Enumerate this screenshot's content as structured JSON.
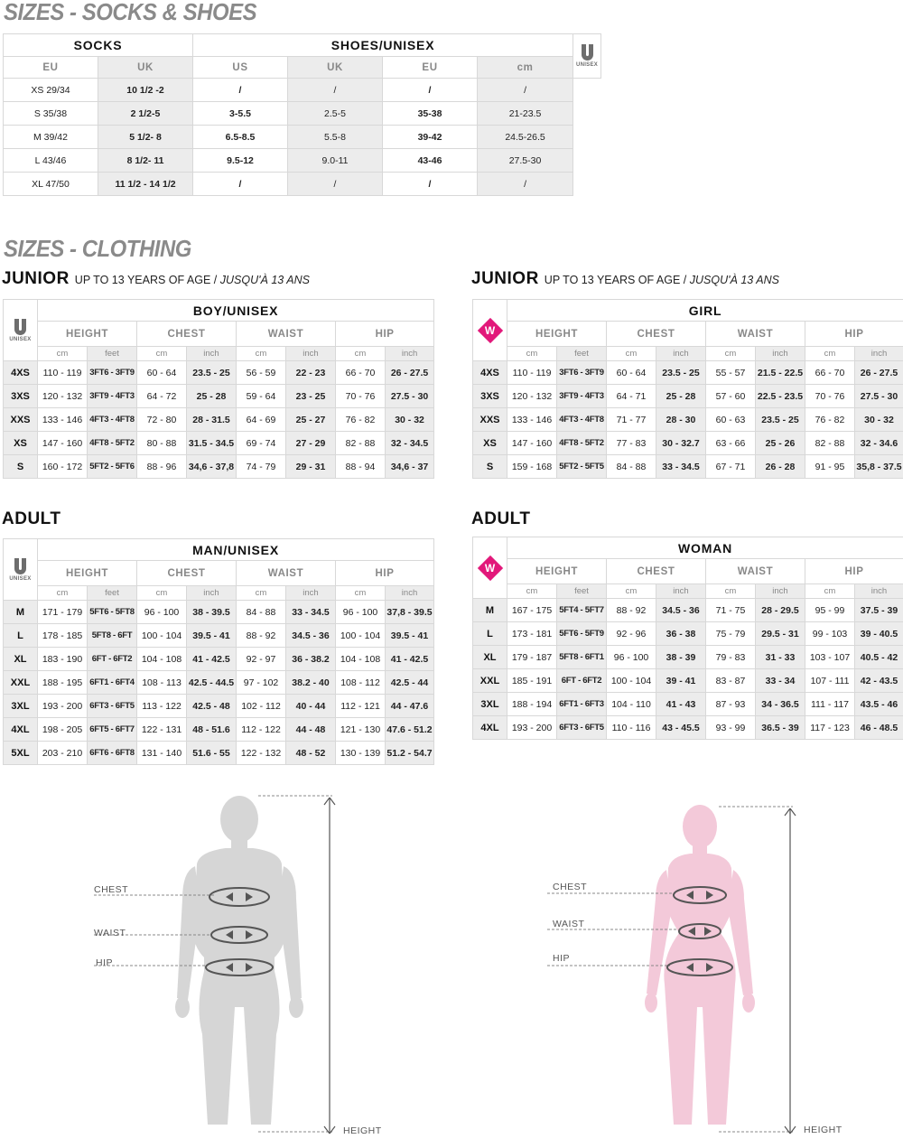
{
  "titles": {
    "socks_shoes": "SIZES - SOCKS & SHOES",
    "clothing": "SIZES - CLOTHING"
  },
  "socks_shoes": {
    "socks_label": "SOCKS",
    "shoes_label": "SHOES/UNISEX",
    "logo_text": "UNISEX",
    "columns": [
      "EU",
      "UK",
      "US",
      "UK",
      "EU",
      "cm"
    ],
    "rows": [
      [
        "XS 29/34",
        "10 1/2 -2",
        "/",
        "/",
        "/",
        "/"
      ],
      [
        "S 35/38",
        "2 1/2-5",
        "3-5.5",
        "2.5-5",
        "35-38",
        "21-23.5"
      ],
      [
        "M 39/42",
        "5 1/2- 8",
        "6.5-8.5",
        "5.5-8",
        "39-42",
        "24.5-26.5"
      ],
      [
        "L 43/46",
        "8 1/2- 11",
        "9.5-12",
        "9.0-11",
        "43-46",
        "27.5-30"
      ],
      [
        "XL 47/50",
        "11 1/2 - 14 1/2",
        "/",
        "/",
        "/",
        "/"
      ]
    ]
  },
  "junior": {
    "title": "JUNIOR",
    "subtitle": "UP TO 13 YEARS OF AGE /",
    "subtitle_fr": "JUSQU'À 13 ANS",
    "boy": {
      "label": "BOY/UNISEX",
      "logo_text": "UNISEX",
      "measures": [
        "HEIGHT",
        "CHEST",
        "WAIST",
        "HIP"
      ],
      "units": [
        "cm",
        "feet",
        "cm",
        "inch",
        "cm",
        "inch",
        "cm",
        "inch"
      ],
      "rows": [
        [
          "4XS",
          "110 - 119",
          "3FT6 - 3FT9",
          "60 - 64",
          "23.5 - 25",
          "56 - 59",
          "22 - 23",
          "66 - 70",
          "26 - 27.5"
        ],
        [
          "3XS",
          "120 - 132",
          "3FT9 - 4FT3",
          "64 - 72",
          "25 - 28",
          "59 - 64",
          "23 - 25",
          "70 - 76",
          "27.5 - 30"
        ],
        [
          "XXS",
          "133 - 146",
          "4FT3 - 4FT8",
          "72 - 80",
          "28 - 31.5",
          "64 - 69",
          "25 - 27",
          "76 - 82",
          "30 - 32"
        ],
        [
          "XS",
          "147 - 160",
          "4FT8 - 5FT2",
          "80 - 88",
          "31.5 - 34.5",
          "69 - 74",
          "27 - 29",
          "82 - 88",
          "32 - 34.5"
        ],
        [
          "S",
          "160 - 172",
          "5FT2 - 5FT6",
          "88 - 96",
          "34,6 - 37,8",
          "74 - 79",
          "29 - 31",
          "88 - 94",
          "34,6 - 37"
        ]
      ]
    },
    "girl": {
      "label": "GIRL",
      "logo_text": "W",
      "measures": [
        "HEIGHT",
        "CHEST",
        "WAIST",
        "HIP"
      ],
      "units": [
        "cm",
        "feet",
        "cm",
        "inch",
        "cm",
        "inch",
        "cm",
        "inch"
      ],
      "rows": [
        [
          "4XS",
          "110 - 119",
          "3FT6 - 3FT9",
          "60 - 64",
          "23.5 - 25",
          "55 - 57",
          "21.5 - 22.5",
          "66 - 70",
          "26 - 27.5"
        ],
        [
          "3XS",
          "120 - 132",
          "3FT9 - 4FT3",
          "64 - 71",
          "25 - 28",
          "57 - 60",
          "22.5 - 23.5",
          "70 - 76",
          "27.5 - 30"
        ],
        [
          "XXS",
          "133 - 146",
          "4FT3 - 4FT8",
          "71 - 77",
          "28 - 30",
          "60 - 63",
          "23.5 - 25",
          "76 - 82",
          "30 - 32"
        ],
        [
          "XS",
          "147 - 160",
          "4FT8 - 5FT2",
          "77 - 83",
          "30 - 32.7",
          "63 - 66",
          "25 - 26",
          "82 - 88",
          "32 - 34.6"
        ],
        [
          "S",
          "159 - 168",
          "5FT2 - 5FT5",
          "84 - 88",
          "33 - 34.5",
          "67 - 71",
          "26 - 28",
          "91 - 95",
          "35,8 - 37.5"
        ]
      ]
    }
  },
  "adult": {
    "title": "ADULT",
    "man": {
      "label": "MAN/UNISEX",
      "logo_text": "UNISEX",
      "measures": [
        "HEIGHT",
        "CHEST",
        "WAIST",
        "HIP"
      ],
      "units": [
        "cm",
        "feet",
        "cm",
        "inch",
        "cm",
        "inch",
        "cm",
        "inch"
      ],
      "rows": [
        [
          "M",
          "171 - 179",
          "5FT6 - 5FT8",
          "96 - 100",
          "38 - 39.5",
          "84 - 88",
          "33 - 34.5",
          "96 - 100",
          "37,8 - 39.5"
        ],
        [
          "L",
          "178 - 185",
          "5FT8 - 6FT",
          "100 - 104",
          "39.5 - 41",
          "88 - 92",
          "34.5 - 36",
          "100 - 104",
          "39.5 - 41"
        ],
        [
          "XL",
          "183 - 190",
          "6FT - 6FT2",
          "104 - 108",
          "41 - 42.5",
          "92 - 97",
          "36 - 38.2",
          "104 - 108",
          "41 - 42.5"
        ],
        [
          "XXL",
          "188 - 195",
          "6FT1 - 6FT4",
          "108 - 113",
          "42.5 - 44.5",
          "97 - 102",
          "38.2 - 40",
          "108 - 112",
          "42.5 - 44"
        ],
        [
          "3XL",
          "193 - 200",
          "6FT3 - 6FT5",
          "113 - 122",
          "42.5 - 48",
          "102 - 112",
          "40 - 44",
          "112 - 121",
          "44 - 47.6"
        ],
        [
          "4XL",
          "198 - 205",
          "6FT5 - 6FT7",
          "122 - 131",
          "48 - 51.6",
          "112 - 122",
          "44 - 48",
          "121 - 130",
          "47.6 - 51.2"
        ],
        [
          "5XL",
          "203 - 210",
          "6FT6 - 6FT8",
          "131 - 140",
          "51.6 - 55",
          "122 - 132",
          "48 - 52",
          "130 - 139",
          "51.2 - 54.7"
        ]
      ]
    },
    "woman": {
      "label": "WOMAN",
      "logo_text": "W",
      "measures": [
        "HEIGHT",
        "CHEST",
        "WAIST",
        "HIP"
      ],
      "units": [
        "cm",
        "feet",
        "cm",
        "inch",
        "cm",
        "inch",
        "cm",
        "inch"
      ],
      "rows": [
        [
          "M",
          "167 - 175",
          "5FT4 - 5FT7",
          "88 - 92",
          "34.5 - 36",
          "71 - 75",
          "28 - 29.5",
          "95 - 99",
          "37.5 - 39"
        ],
        [
          "L",
          "173 - 181",
          "5FT6 - 5FT9",
          "92 - 96",
          "36 - 38",
          "75 - 79",
          "29.5 - 31",
          "99 - 103",
          "39 - 40.5"
        ],
        [
          "XL",
          "179 - 187",
          "5FT8 - 6FT1",
          "96 - 100",
          "38 - 39",
          "79 - 83",
          "31 - 33",
          "103 - 107",
          "40.5 - 42"
        ],
        [
          "XXL",
          "185 - 191",
          "6FT - 6FT2",
          "100 - 104",
          "39 - 41",
          "83 - 87",
          "33 - 34",
          "107 - 111",
          "42 - 43.5"
        ],
        [
          "3XL",
          "188 - 194",
          "6FT1 - 6FT3",
          "104 - 110",
          "41 - 43",
          "87 - 93",
          "34 - 36.5",
          "111 - 117",
          "43.5 - 46"
        ],
        [
          "4XL",
          "193 - 200",
          "6FT3 - 6FT5",
          "110 - 116",
          "43 - 45.5",
          "93 - 99",
          "36.5 - 39",
          "117 - 123",
          "46 - 48.5"
        ]
      ]
    }
  },
  "figures": {
    "man": {
      "chest": "CHEST",
      "waist": "WAIST",
      "hip": "HIP",
      "height": "HEIGHT"
    },
    "woman": {
      "chest": "CHEST",
      "waist": "WAIST",
      "hip": "HIP",
      "height": "HEIGHT"
    }
  },
  "colors": {
    "title_gray": "#8a8a8a",
    "alt_col": "#ececec",
    "woman_pink": "#e2187a",
    "man_figure": "#d6d6d6",
    "woman_figure": "#f3c9d9"
  }
}
